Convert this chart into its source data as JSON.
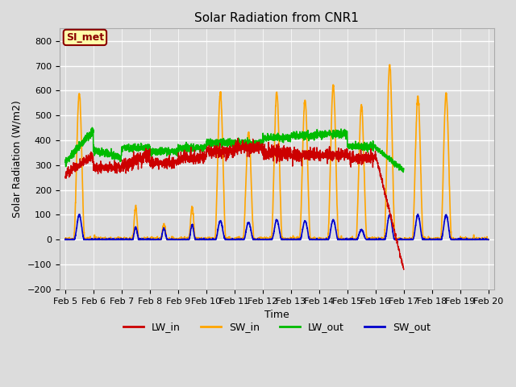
{
  "title": "Solar Radiation from CNR1",
  "xlabel": "Time",
  "ylabel": "Solar Radiation (W/m2)",
  "ylim": [
    -200,
    850
  ],
  "yticks": [
    -200,
    -100,
    0,
    100,
    200,
    300,
    400,
    500,
    600,
    700,
    800
  ],
  "bg_color": "#dcdcdc",
  "plot_bg_color": "#dcdcdc",
  "grid_color": "white",
  "annotation_text": "SI_met",
  "annotation_bg": "#ffffaa",
  "annotation_border": "#8b0000",
  "legend_entries": [
    "LW_in",
    "SW_in",
    "LW_out",
    "SW_out"
  ],
  "line_colors": {
    "LW_in": "#cc0000",
    "SW_in": "#ffa500",
    "LW_out": "#00bb00",
    "SW_out": "#0000cc"
  },
  "line_widths": {
    "LW_in": 1.0,
    "SW_in": 1.2,
    "LW_out": 1.2,
    "SW_out": 1.2
  },
  "n_points": 3000,
  "figwidth": 6.4,
  "figheight": 4.8,
  "dpi": 100
}
